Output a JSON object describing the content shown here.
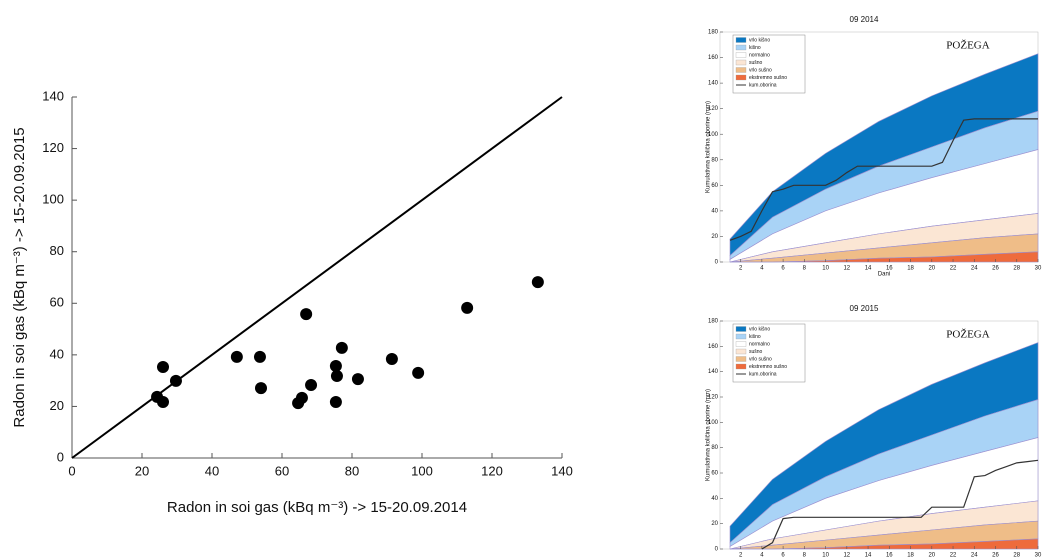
{
  "chart_data": [
    {
      "type": "scatter",
      "xlabel": "Radon in soi gas (kBq m⁻³) -> 15-20.09.2014",
      "ylabel": "Radon in soi gas (kBq m⁻³) -> 15-20.09.2015",
      "xlim": [
        0,
        140
      ],
      "ylim": [
        0,
        140
      ],
      "xticks": [
        0,
        20,
        40,
        60,
        80,
        100,
        120,
        140
      ],
      "yticks": [
        0,
        20,
        40,
        60,
        80,
        100,
        120,
        140
      ],
      "color": "#000000",
      "reference_line": {
        "x": [
          0,
          140
        ],
        "y": [
          0,
          140
        ]
      },
      "x": [
        24.3,
        26,
        26,
        29.7,
        47.1,
        53.7,
        54,
        64.6,
        65.7,
        66.9,
        68.3,
        75.4,
        75.7,
        75.4,
        77.1,
        81.7,
        91.4,
        98.9,
        112.9,
        133.1
      ],
      "y": [
        23.7,
        35.3,
        21.7,
        29.9,
        39.2,
        39.2,
        27.1,
        21.3,
        23.3,
        55.8,
        28.3,
        35.7,
        31.8,
        21.7,
        42.7,
        30.6,
        38.4,
        33,
        58.2,
        68.2
      ]
    },
    {
      "type": "band",
      "title": "09 2014",
      "annotation": "POŽEGA",
      "xlabel": "Dani",
      "ylabel": "Kumulativna količina oborine (mm)",
      "xlim": [
        1,
        30
      ],
      "ylim": [
        0,
        180
      ],
      "xticks": [
        2,
        4,
        6,
        8,
        10,
        12,
        14,
        16,
        18,
        20,
        22,
        24,
        26,
        28,
        30
      ],
      "yticks": [
        0,
        20,
        40,
        60,
        80,
        100,
        120,
        140,
        160,
        180
      ],
      "x": [
        1,
        5,
        10,
        15,
        20,
        25,
        30
      ],
      "series": [
        {
          "name": "vrlo kišno",
          "color": "#0a78c2",
          "values": [
            18,
            55,
            85,
            110,
            130,
            147,
            163
          ]
        },
        {
          "name": "kišno",
          "color": "#a9d3f6",
          "values": [
            5,
            35,
            57,
            75,
            90,
            105,
            118
          ]
        },
        {
          "name": "normalno",
          "color": "#ffffff",
          "values": [
            2,
            22,
            40,
            54,
            66,
            77,
            88
          ]
        },
        {
          "name": "sušno",
          "color": "#fbe6d4",
          "values": [
            0,
            8,
            15,
            22,
            28,
            33,
            38
          ]
        },
        {
          "name": "vrlo sušno",
          "color": "#efbd88",
          "values": [
            0,
            3,
            7,
            11,
            15,
            19,
            22
          ]
        },
        {
          "name": "ekstremno sušno",
          "color": "#ee6b3c",
          "values": [
            0,
            0,
            1,
            3,
            4,
            6,
            8
          ]
        }
      ],
      "line": {
        "name": "kum.oborina",
        "color": "#333333",
        "x": [
          1,
          2,
          3,
          4,
          5,
          6,
          7,
          8,
          9,
          10,
          11,
          12,
          13,
          14,
          15,
          16,
          17,
          18,
          19,
          20,
          21,
          22,
          23,
          24,
          25,
          26,
          27,
          28,
          29,
          30
        ],
        "values": [
          17,
          20,
          24,
          40,
          55,
          57,
          60,
          60,
          60,
          60,
          64,
          70,
          75,
          75,
          75,
          75,
          75,
          75,
          75,
          75,
          78,
          95,
          111,
          112,
          112,
          112,
          112,
          112,
          112,
          112
        ]
      }
    },
    {
      "type": "band",
      "title": "09 2015",
      "annotation": "POŽEGA",
      "ylabel": "Kumulativna količina oborine (mm)",
      "xlim": [
        1,
        30
      ],
      "ylim": [
        0,
        180
      ],
      "xticks": [
        2,
        4,
        6,
        8,
        10,
        12,
        14,
        16,
        18,
        20,
        22,
        24,
        26,
        28,
        30
      ],
      "yticks": [
        0,
        20,
        40,
        60,
        80,
        100,
        120,
        140,
        160,
        180
      ],
      "x": [
        1,
        5,
        10,
        15,
        20,
        25,
        30
      ],
      "series": [
        {
          "name": "vrlo kišno",
          "color": "#0a78c2",
          "values": [
            18,
            55,
            85,
            110,
            130,
            147,
            163
          ]
        },
        {
          "name": "kišno",
          "color": "#a9d3f6",
          "values": [
            5,
            35,
            57,
            75,
            90,
            105,
            118
          ]
        },
        {
          "name": "normalno",
          "color": "#ffffff",
          "values": [
            2,
            22,
            40,
            54,
            66,
            77,
            88
          ]
        },
        {
          "name": "sušno",
          "color": "#fbe6d4",
          "values": [
            0,
            8,
            15,
            22,
            28,
            33,
            38
          ]
        },
        {
          "name": "vrlo sušno",
          "color": "#efbd88",
          "values": [
            0,
            3,
            7,
            11,
            15,
            19,
            22
          ]
        },
        {
          "name": "ekstremno sušno",
          "color": "#ee6b3c",
          "values": [
            0,
            0,
            1,
            3,
            4,
            6,
            8
          ]
        }
      ],
      "line": {
        "name": "kum.oborina",
        "color": "#333333",
        "x": [
          1,
          2,
          3,
          4,
          5,
          6,
          7,
          8,
          9,
          10,
          11,
          12,
          13,
          14,
          15,
          16,
          17,
          18,
          19,
          20,
          21,
          22,
          23,
          24,
          25,
          26,
          27,
          28,
          29,
          30
        ],
        "values": [
          null,
          null,
          null,
          0,
          5,
          24,
          25,
          25,
          25,
          25,
          25,
          25,
          25,
          25,
          25,
          25,
          25,
          25,
          25,
          33,
          33,
          33,
          33,
          57,
          58,
          62,
          65,
          68,
          69,
          70
        ]
      }
    }
  ]
}
